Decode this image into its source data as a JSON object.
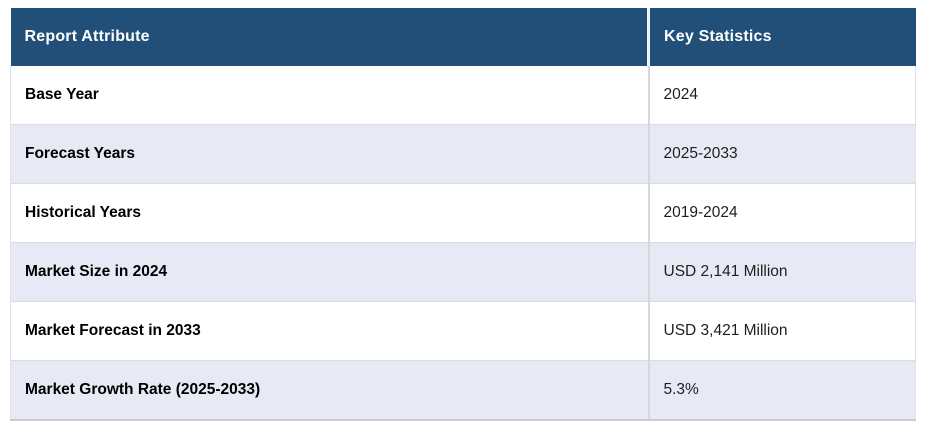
{
  "colors": {
    "header_bg": "#214F78",
    "header_text": "#ffffff",
    "row_bg": "#ffffff",
    "row_alt_bg": "#E7E9F4",
    "label_text": "#000000",
    "value_text": "#1e1e1e",
    "row_border": "#dadce3",
    "column_divider": "#d6d7dd",
    "bottom_border": "#c9ccd4"
  },
  "table": {
    "columns": [
      {
        "label": "Report Attribute"
      },
      {
        "label": "Key Statistics"
      }
    ],
    "rows": [
      {
        "attribute": "Base Year",
        "value": "2024"
      },
      {
        "attribute": "Forecast Years",
        "value": "2025-2033"
      },
      {
        "attribute": "Historical Years",
        "value": "2019-2024"
      },
      {
        "attribute": "Market Size in 2024",
        "value": "USD 2,141 Million"
      },
      {
        "attribute": "Market Forecast in 2033",
        "value": "USD 3,421 Million"
      },
      {
        "attribute": "Market Growth Rate (2025-2033)",
        "value": "5.3%"
      }
    ]
  },
  "chart_data": {
    "type": "table",
    "title": "Report Attribute vs Key Statistics",
    "columns": [
      "Report Attribute",
      "Key Statistics"
    ],
    "rows": [
      [
        "Base Year",
        "2024"
      ],
      [
        "Forecast Years",
        "2025-2033"
      ],
      [
        "Historical Years",
        "2019-2024"
      ],
      [
        "Market Size in 2024",
        "USD 2,141 Million"
      ],
      [
        "Market Forecast in 2033",
        "USD 3,421 Million"
      ],
      [
        "Market Growth Rate (2025-2033)",
        "5.3%"
      ]
    ],
    "market_size_2024_usd_million": 2141,
    "market_forecast_2033_usd_million": 3421,
    "cagr_percent_2025_2033": 5.3
  }
}
